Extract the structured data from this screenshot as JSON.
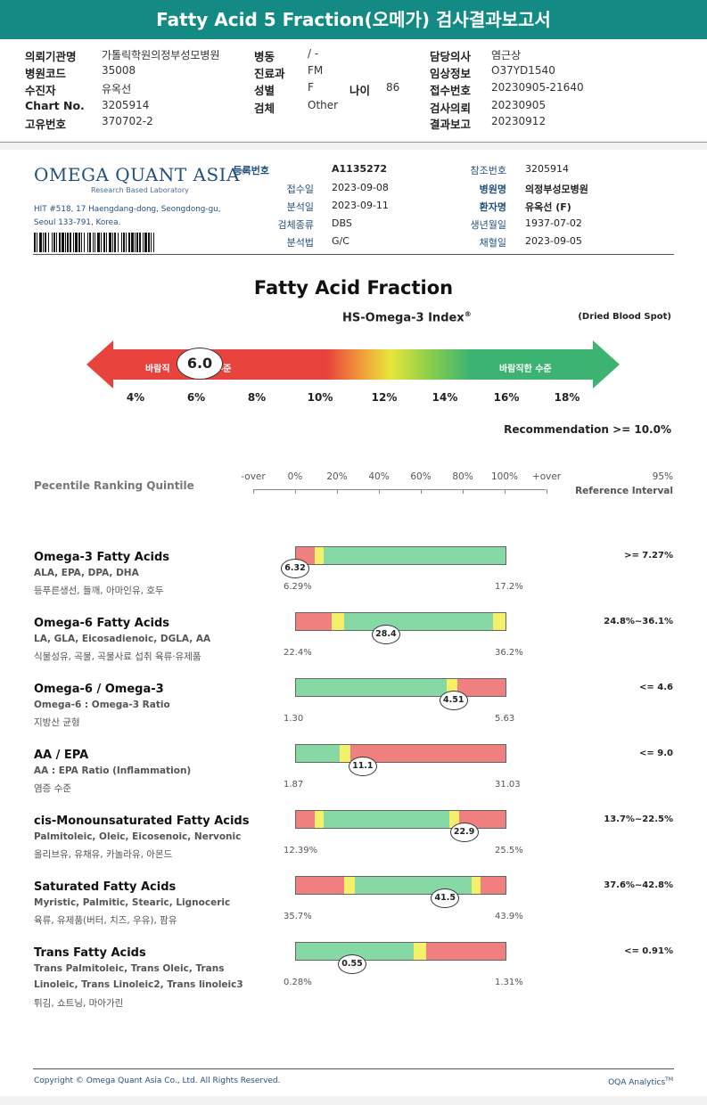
{
  "header": {
    "title": "Fatty Acid 5 Fraction(오메가) 검사결과보고서"
  },
  "info": {
    "col1": [
      {
        "label": "의뢰기관명",
        "value": "가톨릭학원의정부성모병원"
      },
      {
        "label": "병원코드",
        "value": "35008"
      },
      {
        "label": "수진자",
        "value": "유옥선"
      },
      {
        "label": "Chart No.",
        "value": "3205914"
      },
      {
        "label": "고유번호",
        "value": "370702-2"
      }
    ],
    "col2": [
      {
        "label": "병동",
        "value": "/ -"
      },
      {
        "label": "진료과",
        "value": "FM"
      },
      {
        "label": "성별",
        "value": "F"
      },
      {
        "label": "검체",
        "value": "Other"
      }
    ],
    "age": {
      "label": "나이",
      "value": "86"
    },
    "col3": [
      {
        "label": "담당의사",
        "value": "염근상"
      },
      {
        "label": "임상정보",
        "value": "O37YD1540"
      },
      {
        "label": "접수번호",
        "value": "20230905-21640"
      },
      {
        "label": "검사의뢰",
        "value": "20230905"
      },
      {
        "label": "결과보고",
        "value": "20230912"
      }
    ]
  },
  "lab": {
    "logo": "OMEGA QUANT ASIA",
    "logo_reg": "®",
    "logo_sub": "Research Based Laboratory",
    "address1": "HIT #518, 17 Haengdang-dong, Seongdong-gu,",
    "address2": "Seoul 133-791, Korea."
  },
  "meta": {
    "left": [
      {
        "label": "등록번호",
        "value": "A1135272",
        "bold": true
      },
      {
        "label": "접수일",
        "value": "2023-09-08"
      },
      {
        "label": "분석일",
        "value": "2023-09-11"
      },
      {
        "label": "검체종류",
        "value": "DBS"
      },
      {
        "label": "분석법",
        "value": "G/C"
      }
    ],
    "right": [
      {
        "label": "참조번호",
        "value": "3205914"
      },
      {
        "label": "병원명",
        "value": "의정부성모병원",
        "bold": true
      },
      {
        "label": "환자명",
        "value": "유옥선 (F)",
        "bold": true
      },
      {
        "label": "생년월일",
        "value": "1937-07-02"
      },
      {
        "label": "채혈일",
        "value": "2023-09-05"
      }
    ]
  },
  "index": {
    "title": "Fatty Acid Fraction",
    "subtitle": "HS-Omega-3 Index",
    "subtitle_reg": "®",
    "specimen": "(Dried Blood Spot)",
    "value": "6.0",
    "left_zone": "바람직",
    "left_zone_tail": "수준",
    "right_zone": "바람직한 수준",
    "ticks": [
      "4%",
      "6%",
      "8%",
      "10%",
      "12%",
      "14%",
      "16%",
      "18%"
    ],
    "recommendation": "Recommendation  >= 10.0%",
    "colors": {
      "red": "#e8423c",
      "yellow": "#e8e63a",
      "green": "#3cb371"
    }
  },
  "percentile": {
    "title": "Pecentile Ranking Quintile",
    "labels": [
      "-over",
      "0%",
      "20%",
      "40%",
      "60%",
      "80%",
      "100%",
      "+over"
    ],
    "ref_top": "95%",
    "ref_bottom": "Reference Interval"
  },
  "metrics": [
    {
      "name": "Omega-3 Fatty Acids",
      "sub": "ALA, EPA, DPA, DHA",
      "food": "등푸른생선, 들깨, 아마인유, 호두",
      "min": "6.29%",
      "max": "17.2%",
      "ref": ">= 7.27%",
      "value": "6.32",
      "fraction": 0.0
    },
    {
      "name": "Omega-6 Fatty Acids",
      "sub": "LA, GLA, Eicosadienoic, DGLA, AA",
      "food": "식물성유, 곡물, 곡물사료 섭취 육류·유제품",
      "min": "22.4%",
      "max": "36.2%",
      "ref": "24.8%~36.1%",
      "value": "28.4",
      "fraction": 0.43
    },
    {
      "name": "Omega-6 / Omega-3",
      "sub": "Omega-6 : Omega-3 Ratio",
      "food": "지방산 균형",
      "min": "1.30",
      "max": "5.63",
      "ref": "<= 4.6",
      "value": "4.51",
      "fraction": 0.75
    },
    {
      "name": "AA / EPA",
      "sub": "AA : EPA Ratio (Inflammation)",
      "food": "염증 수준",
      "min": "1.87",
      "max": "31.03",
      "ref": "<= 9.0",
      "value": "11.1",
      "fraction": 0.32
    },
    {
      "name": "cis-Monounsaturated Fatty Acids",
      "sub": "Palmitoleic, Oleic, Eicosenoic, Nervonic",
      "food": "올리브유, 유채유, 카놀라유, 아몬드",
      "min": "12.39%",
      "max": "25.5%",
      "ref": "13.7%~22.5%",
      "value": "22.9",
      "fraction": 0.8
    },
    {
      "name": "Saturated Fatty Acids",
      "sub": "Myristic, Palmitic, Stearic, Lignoceric",
      "food": "육류, 유제품(버터, 치즈, 우유), 팜유",
      "min": "35.7%",
      "max": "43.9%",
      "ref": "37.6%~42.8%",
      "value": "41.5",
      "fraction": 0.71
    },
    {
      "name": "Trans Fatty Acids",
      "sub": "Trans Palmitoleic, Trans Oleic, Trans",
      "sub2": "Linoleic, Trans Linoleic2, Trans linoleic3",
      "food": "튀김, 쇼트닝, 마아가린",
      "min": "0.28%",
      "max": "1.31%",
      "ref": "<= 0.91%",
      "value": "0.55",
      "fraction": 0.27
    }
  ],
  "footer": {
    "copyright": "Copyright © Omega Quant Asia Co., Ltd.  All Rights Reserved.",
    "brand": "OQA Analytics",
    "tm": "TM"
  }
}
